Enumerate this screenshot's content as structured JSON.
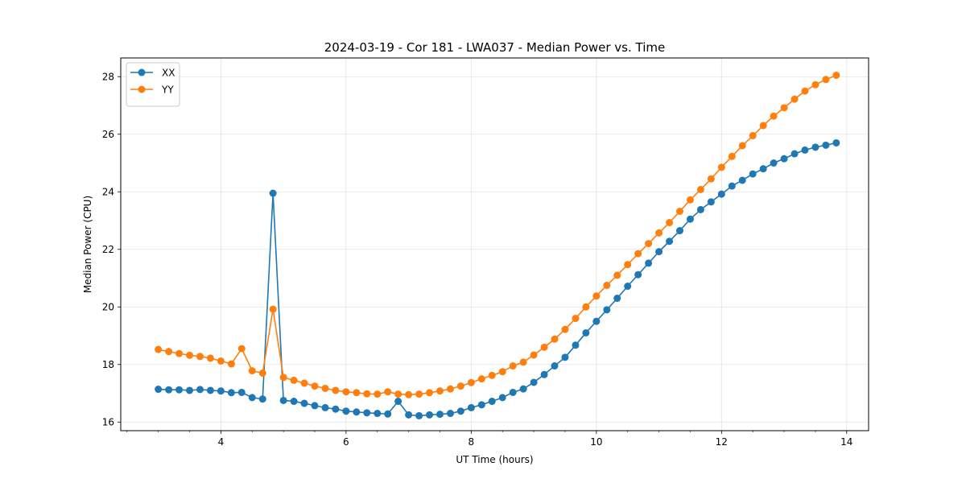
{
  "chart_data": {
    "type": "line",
    "title": "2024-03-19 - Cor 181 - LWA037 - Median Power vs. Time",
    "xlabel": "UT Time (hours)",
    "ylabel": "Median Power (CPU)",
    "xlim": [
      2.4,
      14.35
    ],
    "ylim": [
      15.7,
      28.65
    ],
    "xticks": [
      4,
      6,
      8,
      10,
      12,
      14
    ],
    "xminor_step": 0.5,
    "yticks": [
      16,
      18,
      20,
      22,
      24,
      26,
      28
    ],
    "grid": true,
    "legend_position": "upper-left",
    "x": [
      3.0,
      3.167,
      3.333,
      3.5,
      3.667,
      3.833,
      4.0,
      4.167,
      4.333,
      4.5,
      4.667,
      4.833,
      5.0,
      5.167,
      5.333,
      5.5,
      5.667,
      5.833,
      6.0,
      6.167,
      6.333,
      6.5,
      6.667,
      6.833,
      7.0,
      7.167,
      7.333,
      7.5,
      7.667,
      7.833,
      8.0,
      8.167,
      8.333,
      8.5,
      8.667,
      8.833,
      9.0,
      9.167,
      9.333,
      9.5,
      9.667,
      9.833,
      10.0,
      10.167,
      10.333,
      10.5,
      10.667,
      10.833,
      11.0,
      11.167,
      11.333,
      11.5,
      11.667,
      11.833,
      12.0,
      12.167,
      12.333,
      12.5,
      12.667,
      12.833,
      13.0,
      13.167,
      13.333,
      13.5,
      13.667,
      13.833
    ],
    "series": [
      {
        "name": "XX",
        "color": "#1f77b4",
        "values": [
          17.14,
          17.12,
          17.12,
          17.1,
          17.13,
          17.1,
          17.08,
          17.02,
          17.03,
          16.85,
          16.8,
          23.95,
          16.75,
          16.72,
          16.65,
          16.57,
          16.5,
          16.45,
          16.38,
          16.35,
          16.32,
          16.3,
          16.28,
          16.72,
          16.25,
          16.22,
          16.25,
          16.27,
          16.3,
          16.38,
          16.5,
          16.6,
          16.72,
          16.85,
          17.03,
          17.15,
          17.38,
          17.65,
          17.95,
          18.25,
          18.67,
          19.1,
          19.5,
          19.9,
          20.3,
          20.72,
          21.12,
          21.52,
          21.92,
          22.28,
          22.65,
          23.05,
          23.38,
          23.65,
          23.92,
          24.2,
          24.4,
          24.62,
          24.8,
          25.0,
          25.15,
          25.32,
          25.45,
          25.55,
          25.62,
          25.7
        ]
      },
      {
        "name": "YY",
        "color": "#ff7f0e",
        "values": [
          18.52,
          18.45,
          18.38,
          18.32,
          18.28,
          18.22,
          18.12,
          18.02,
          18.55,
          17.78,
          17.7,
          19.92,
          17.55,
          17.45,
          17.35,
          17.25,
          17.17,
          17.1,
          17.05,
          17.02,
          16.98,
          16.97,
          17.05,
          16.97,
          16.95,
          16.97,
          17.02,
          17.08,
          17.15,
          17.25,
          17.37,
          17.5,
          17.62,
          17.75,
          17.95,
          18.08,
          18.33,
          18.6,
          18.88,
          19.22,
          19.6,
          20.0,
          20.38,
          20.75,
          21.1,
          21.47,
          21.85,
          22.2,
          22.57,
          22.93,
          23.32,
          23.72,
          24.08,
          24.45,
          24.85,
          25.23,
          25.6,
          25.95,
          26.3,
          26.63,
          26.92,
          27.22,
          27.5,
          27.72,
          27.9,
          28.05
        ]
      }
    ]
  }
}
